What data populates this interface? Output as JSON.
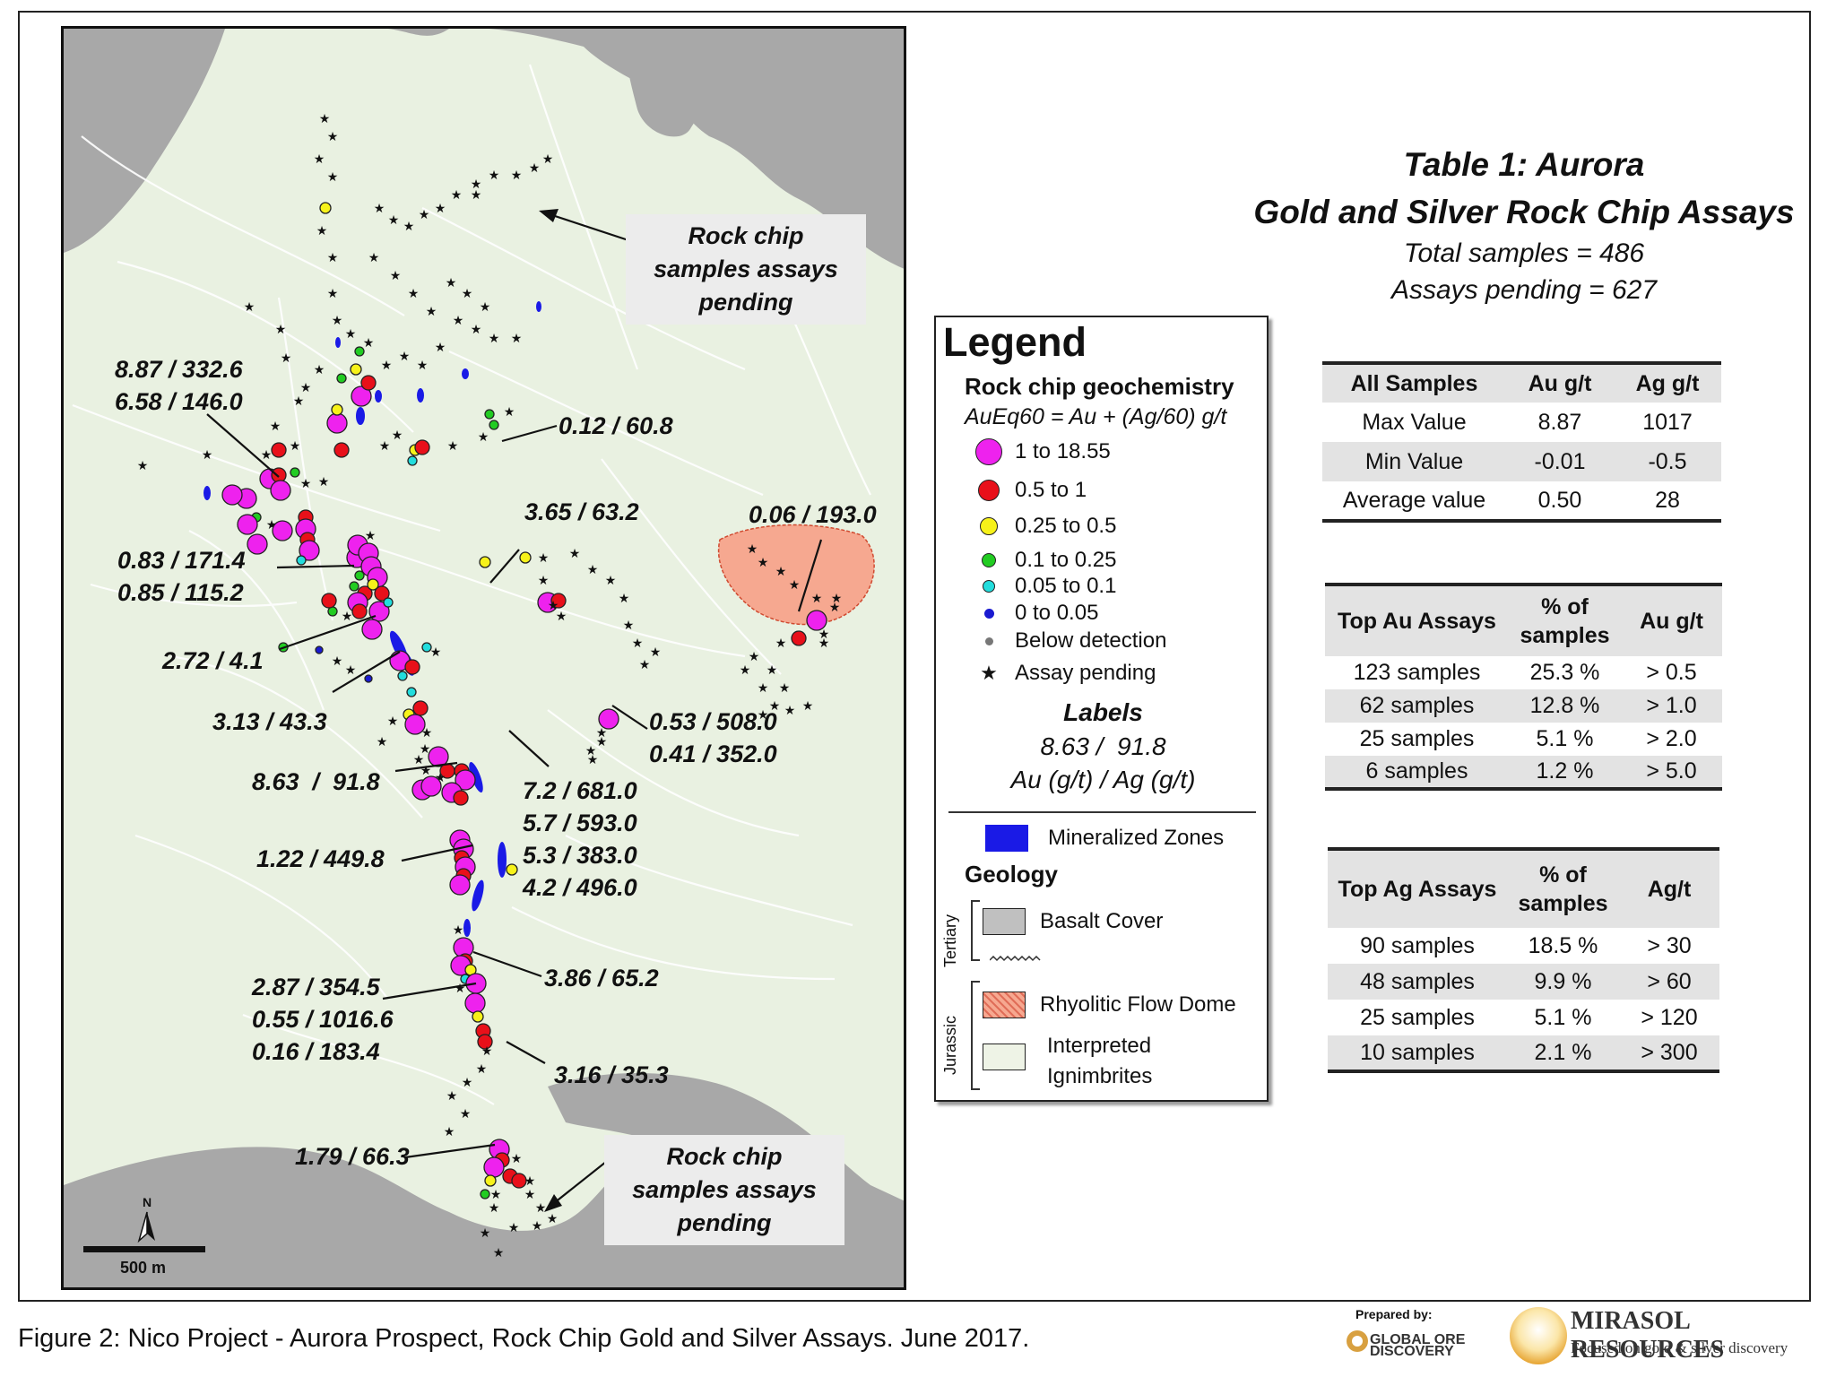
{
  "map": {
    "labels": [
      "8.87 / 332.6\n6.58 / 146.0",
      "0.12 / 60.8",
      "3.65 / 63.2",
      "0.06 / 193.0",
      "0.83 / 171.4\n0.85 / 115.2",
      "2.72 / 4.1",
      "3.13 / 43.3",
      "0.53 / 508.0\n0.41 / 352.0",
      "8.63  /  91.8",
      "7.2 / 681.0\n5.7 / 593.0\n5.3 / 383.0\n4.2 / 496.0",
      "1.22 / 449.8",
      "3.86 / 65.2",
      "2.87 / 354.5\n0.55 / 1016.6\n0.16 / 183.4",
      "3.16 / 35.3",
      "1.79 / 66.3"
    ],
    "pending_note_top": "Rock chip samples\nassays pending",
    "pending_note_bottom": "Rock chip samples\nassays pending",
    "scale_label": "500 m",
    "north_label": "N"
  },
  "legend": {
    "title": "Legend",
    "section_geochem": "Rock chip geochemistry",
    "formula": "AuEq60 = Au + (Ag/60) g/t",
    "items": [
      {
        "label": "1 to 18.55",
        "color": "#ee22ee"
      },
      {
        "label": "0.5 to 1",
        "color": "#e8101a"
      },
      {
        "label": "0.25 to 0.5",
        "color": "#f7f21a"
      },
      {
        "label": "0.1 to 0.25",
        "color": "#22cc22"
      },
      {
        "label": "0.05 to 0.1",
        "color": "#22dddd"
      },
      {
        "label": "0 to 0.05",
        "color": "#1a1ad0"
      },
      {
        "label": "Below detection",
        "color": "#777777"
      },
      {
        "label": "Assay pending",
        "icon": "star-icon"
      }
    ],
    "labels_heading": "Labels",
    "labels_example": "8.63 /  91.8",
    "labels_units": "Au (g/t) / Ag (g/t)",
    "mineralized": "Mineralized Zones",
    "geology_heading": "Geology",
    "tertiary": "Tertiary",
    "jurassic": "Jurassic",
    "basalt": "Basalt Cover",
    "rhyolitic": "Rhyolitic Flow Dome",
    "ignimbrites": "Interpreted\nIgnimbrites",
    "mineralized_color": "#1a1ae6",
    "basalt_color": "#c0c0c0",
    "rhyolitic_color": "#f6a890",
    "ignimbrite_color": "#eef3e6"
  },
  "tables": {
    "title_line1": "Table 1: Aurora",
    "title_line2": "Gold and Silver Rock Chip Assays",
    "total": "Total samples = 486",
    "pending": "Assays pending = 627",
    "summary": {
      "headers": [
        "All Samples",
        "Au g/t",
        "Ag g/t"
      ],
      "rows": [
        [
          "Max Value",
          "8.87",
          "1017"
        ],
        [
          "Min Value",
          "-0.01",
          "-0.5"
        ],
        [
          "Average value",
          "0.50",
          "28"
        ]
      ]
    },
    "top_au": {
      "headers": [
        "Top Au Assays",
        "% of\nsamples",
        "Au g/t"
      ],
      "rows": [
        [
          "123 samples",
          "25.3 %",
          "> 0.5"
        ],
        [
          "62 samples",
          "12.8 %",
          "> 1.0"
        ],
        [
          "25 samples",
          "5.1 %",
          "> 2.0"
        ],
        [
          "6 samples",
          "1.2 %",
          "> 5.0"
        ]
      ]
    },
    "top_ag": {
      "headers": [
        "Top Ag Assays",
        "% of\nsamples",
        "Ag/t"
      ],
      "rows": [
        [
          "90 samples",
          "18.5 %",
          "> 30"
        ],
        [
          "48 samples",
          "9.9 %",
          "> 60"
        ],
        [
          "25 samples",
          "5.1 %",
          "> 120"
        ],
        [
          "10 samples",
          "2.1 %",
          "> 300"
        ]
      ]
    }
  },
  "footer": {
    "caption": "Figure 2: Nico Project - Aurora Prospect, Rock Chip Gold and Silver Assays. June 2017.",
    "prepared_by": "Prepared by:",
    "god_logo_text": "GLOBAL ORE\nDISCOVERY",
    "company": "MIRASOL RESOURCES",
    "tagline": "Focused on gold & silver discovery"
  }
}
